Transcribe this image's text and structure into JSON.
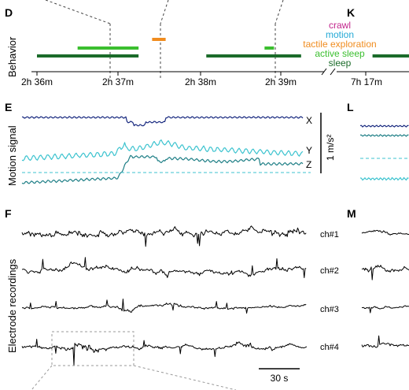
{
  "colors": {
    "sleep": "#1b6b2a",
    "active_sleep": "#3bbf2f",
    "tactile_exploration": "#f08c1e",
    "motion": "#24a9d6",
    "crawl": "#c2268d",
    "x_axis": "#1a2b80",
    "y_axis": "#3cc3cf",
    "z_axis": "#1f7f86",
    "trace": "#000000",
    "dashed_box": "#999999"
  },
  "panels": {
    "D": "D",
    "E": "E",
    "F": "F",
    "K": "K",
    "L": "L",
    "M": "M"
  },
  "labels": {
    "behavior": "Behavior",
    "motion_signal": "Motion signal",
    "electrode_recordings": "Electrode recordings",
    "accel_scale": "1 m/s²",
    "time_scale": "30 s"
  },
  "axis_components": [
    "X",
    "Y",
    "Z"
  ],
  "channels": [
    "ch#1",
    "ch#2",
    "ch#3",
    "ch#4"
  ],
  "chart_data": [
    {
      "type": "timeline",
      "panel": "D",
      "ylabel": "Behavior",
      "xlabel": "",
      "xticks": [
        "2h 36m",
        "2h 37m",
        "2h 38m",
        "2h 39m",
        "7h 17m"
      ],
      "axis_break_between": [
        "2h 39m",
        "7h 17m"
      ],
      "legend": [
        "crawl",
        "motion",
        "tactile exploration",
        "active sleep",
        "sleep"
      ],
      "legend_placement": "top-right",
      "bouts": [
        {
          "state": "sleep",
          "start": "2h 36m 00s",
          "end": "2h 37m 15s"
        },
        {
          "state": "active sleep",
          "start": "2h 36m 30s",
          "end": "2h 37m 15s"
        },
        {
          "state": "tactile exploration",
          "start": "2h 37m 25s",
          "end": "2h 37m 35s"
        },
        {
          "state": "sleep",
          "start": "2h 38m 05s",
          "end": "2h 39m 15s"
        },
        {
          "state": "active sleep",
          "start": "2h 38m 48s",
          "end": "2h 38m 55s"
        },
        {
          "state": "sleep",
          "start": "7h 17m 05s",
          "end": "7h 17m 40s"
        }
      ]
    },
    {
      "type": "line",
      "panel": "E",
      "ylabel": "Motion signal",
      "scale_bar": "1 m/s²",
      "series": [
        {
          "name": "X",
          "color": "#1a2b80"
        },
        {
          "name": "Y",
          "color": "#3cc3cf"
        },
        {
          "name": "Z",
          "color": "#1f7f86"
        }
      ]
    },
    {
      "type": "line",
      "panel": "F",
      "ylabel": "Electrode recordings",
      "scale_bar": "30 s",
      "series": [
        {
          "name": "ch#1"
        },
        {
          "name": "ch#2"
        },
        {
          "name": "ch#3"
        },
        {
          "name": "ch#4"
        }
      ]
    }
  ]
}
